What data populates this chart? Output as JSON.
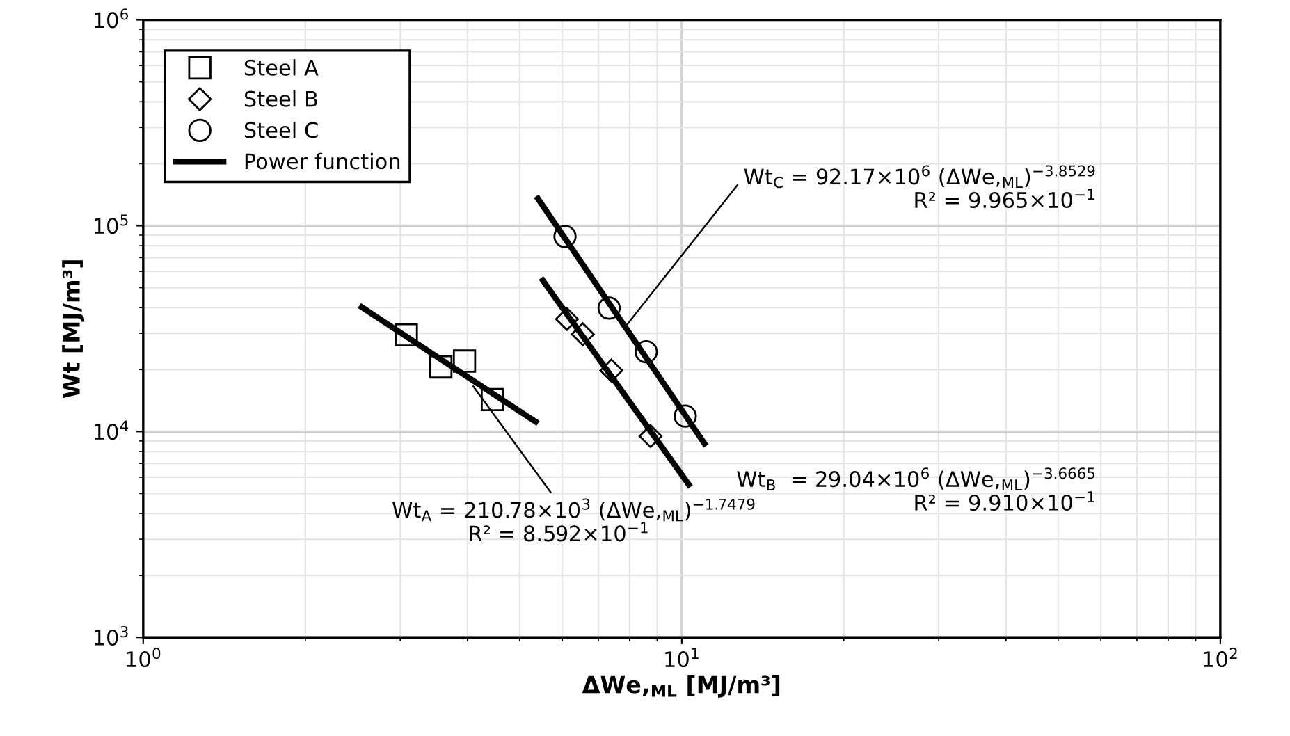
{
  "chart_data": {
    "type": "scatter",
    "xlabel": "ΔWe,$_{ML}$ [MJ/m³]",
    "ylabel": "Wt [MJ/m³]",
    "log": "xy",
    "grid": true,
    "legend": "top left",
    "xlim": [
      1,
      100
    ],
    "ylim": [
      1000,
      1000000
    ],
    "xticks": [
      {
        "value": 1,
        "label": "10$^{0}$"
      },
      {
        "value": 10,
        "label": "10$^{1}$"
      },
      {
        "value": 100,
        "label": "10$^{2}$"
      }
    ],
    "yticks": [
      {
        "value": 1000,
        "label": "10$^{3}$"
      },
      {
        "value": 10000,
        "label": "10$^{4}$"
      },
      {
        "value": 100000,
        "label": "10$^{5}$"
      },
      {
        "value": 1000000,
        "label": "10$^{6}$"
      }
    ],
    "series": [
      {
        "name": "Steel A",
        "marker": "square",
        "color": "#000000",
        "x": [
          3.08,
          3.57,
          3.95,
          4.45
        ],
        "values": [
          29500,
          20600,
          22000,
          14300
        ]
      },
      {
        "name": "Steel B",
        "marker": "diamond",
        "color": "#000000",
        "x": [
          6.12,
          6.55,
          7.4,
          8.75
        ],
        "values": [
          35200,
          29700,
          19800,
          9500
        ]
      },
      {
        "name": "Steel C",
        "marker": "circle",
        "color": "#000000",
        "x": [
          6.07,
          7.33,
          8.59,
          10.15
        ],
        "values": [
          88700,
          39800,
          24400,
          11880
        ]
      },
      {
        "name": "Power function",
        "type": "line",
        "color": "#000000",
        "x": [
          2.52,
          5.41
        ],
        "values": [
          40900,
          10960
        ]
      },
      {
        "type": "line",
        "color": "#000000",
        "x": [
          5.48,
          10.38
        ],
        "values": [
          55700,
          5380
        ]
      },
      {
        "type": "line",
        "color": "#000000",
        "x": [
          5.37,
          11.1
        ],
        "values": [
          139000,
          8510
        ]
      }
    ],
    "annotations": [
      {
        "text": "Wt$_{A}$ = 210.78×10$^{3}$ (ΔWe,$_{ML}$)$^{−1.7479}$",
        "x": 4.1,
        "y": 16600
      },
      "R² = 8.592×10$^{−1}$",
      "Wt$_{B}$  = 29.04×10$^{6}$ (ΔWe,$_{ML}$)$^{−3.6665}$",
      "R² = 9.910×10$^{−1}$",
      {
        "text": "Wt$_{C}$ = 92.17×10$^{6}$ (ΔWe,$_{ML}$)$^{−3.8529}$",
        "x": 7.93,
        "y": 33300
      },
      "R² = 9.965×10$^{−1}$"
    ]
  }
}
